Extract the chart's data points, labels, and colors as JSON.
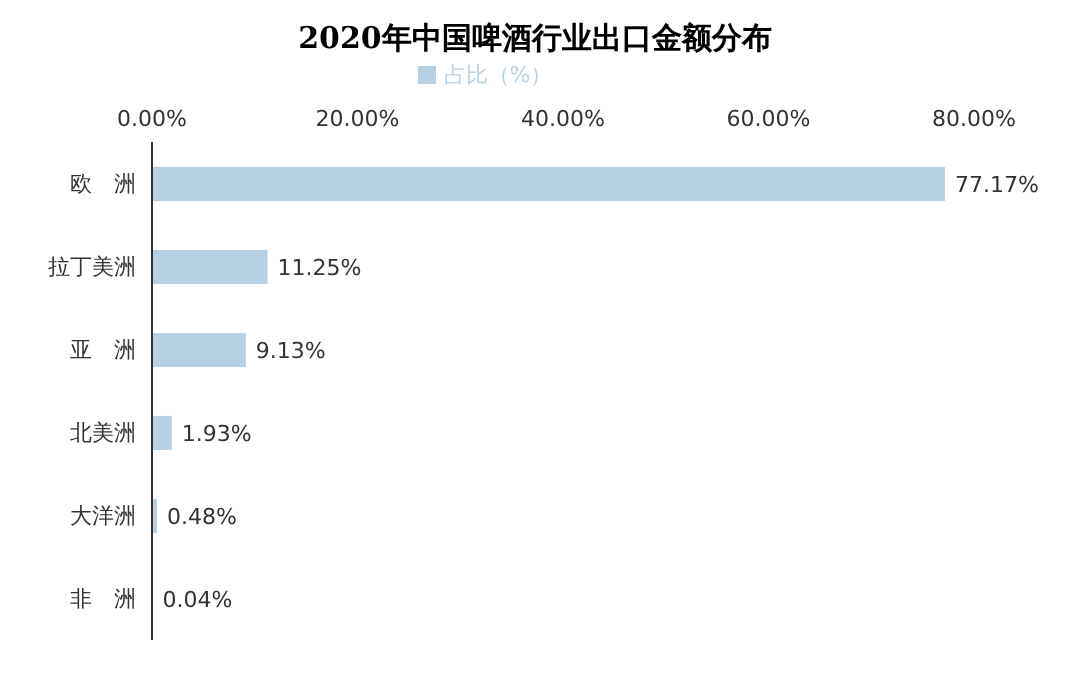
{
  "chart_data": {
    "type": "bar",
    "orientation": "horizontal",
    "title": "2020年中国啤酒行业出口金额分布",
    "categories": [
      "欧　洲",
      "拉丁美洲",
      "亚　洲",
      "北美洲",
      "大洋洲",
      "非　洲"
    ],
    "series": [
      {
        "name": "占比（%）",
        "color": "#b7d0e2",
        "values": [
          77.17,
          11.25,
          9.13,
          1.93,
          0.48,
          0.04
        ],
        "value_labels": [
          "77.17%",
          "11.25%",
          "9.13%",
          "1.93%",
          "0.48%",
          "0.04%"
        ]
      }
    ],
    "xlim": [
      0,
      80
    ],
    "xticks": [
      {
        "value": 0,
        "label": "0.00%"
      },
      {
        "value": 20,
        "label": "20.00%"
      },
      {
        "value": 40,
        "label": "40.00%"
      },
      {
        "value": 60,
        "label": "60.00%"
      },
      {
        "value": 80,
        "label": "80.00%"
      }
    ],
    "grid": false,
    "legend": "top"
  }
}
